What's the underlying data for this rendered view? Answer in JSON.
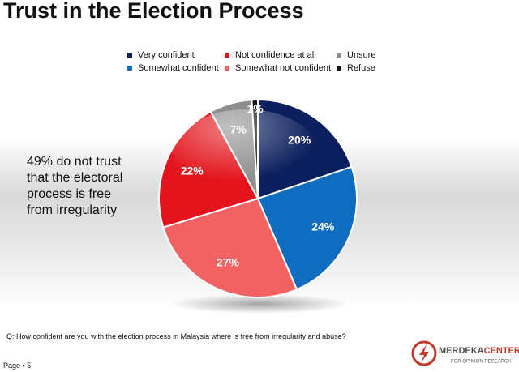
{
  "chart_data": {
    "type": "pie",
    "title": "Trust in the Election Process",
    "categories": [
      "Very confident",
      "Somewhat confident",
      "Somewhat not confident",
      "Not confidence at all",
      "Unsure",
      "Refuse"
    ],
    "values": [
      20,
      24,
      27,
      22,
      7,
      1
    ],
    "value_labels": [
      "20%",
      "24%",
      "27%",
      "22%",
      "7%",
      "1%"
    ],
    "colors": [
      "#0c1f5e",
      "#0f6cbf",
      "#f26262",
      "#e3141c",
      "#8e8e8e",
      "#151515"
    ],
    "legend": "top",
    "annotation": "49% do not trust that the electoral process is free from irregularity",
    "question": "Q: How confident are you with the election process in Malaysia where is free from irregularity and abuse?"
  },
  "footer": {
    "page": "Page ▪ 5",
    "logo": "MERDEKA",
    "logo_accent": "CENTER",
    "logo_sub": "FOR OPINION RESEARCH"
  }
}
